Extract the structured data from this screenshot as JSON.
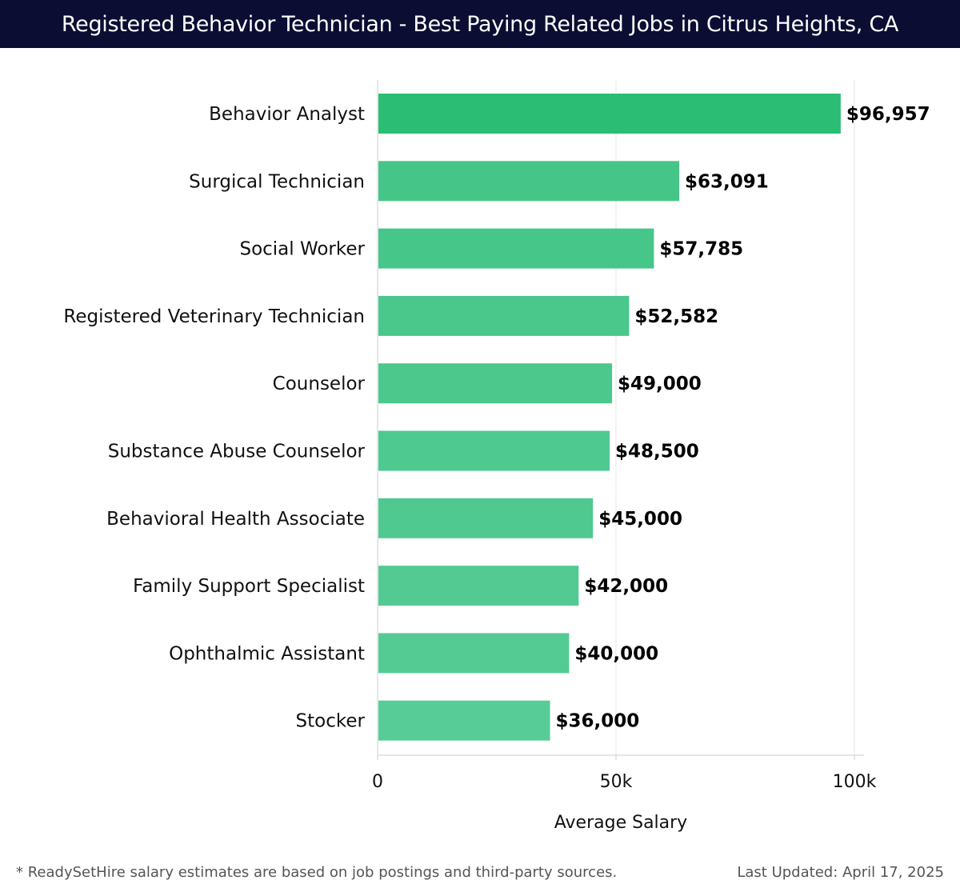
{
  "header": {
    "title": "Registered Behavior Technician - Best Paying Related Jobs in Citrus Heights, CA"
  },
  "chart_data": {
    "type": "bar",
    "orientation": "horizontal",
    "categories": [
      "Behavior Analyst",
      "Surgical Technician",
      "Social Worker",
      "Registered Veterinary Technician",
      "Counselor",
      "Substance Abuse Counselor",
      "Behavioral Health Associate",
      "Family Support Specialist",
      "Ophthalmic Assistant",
      "Stocker"
    ],
    "values": [
      96957,
      63091,
      57785,
      52582,
      49000,
      48500,
      45000,
      42000,
      40000,
      36000
    ],
    "value_labels": [
      "$96,957",
      "$63,091",
      "$57,785",
      "$52,582",
      "$49,000",
      "$48,500",
      "$45,000",
      "$42,000",
      "$40,000",
      "$36,000"
    ],
    "xlabel": "Average Salary",
    "xlim": [
      0,
      102000
    ],
    "xticks": [
      0,
      50000,
      100000
    ],
    "xtick_labels": [
      "0",
      "50k",
      "100k"
    ],
    "grid": "vertical",
    "colors": {
      "top_bar": "#2bbd73",
      "bars_start": "#45c587",
      "bars_end": "#57cc96",
      "grid": "#e5e5e5",
      "axis": "#cccccc"
    }
  },
  "footer": {
    "note": "* ReadySetHire salary estimates are based on job postings and third-party sources.",
    "updated": "Last Updated: April 17, 2025"
  }
}
